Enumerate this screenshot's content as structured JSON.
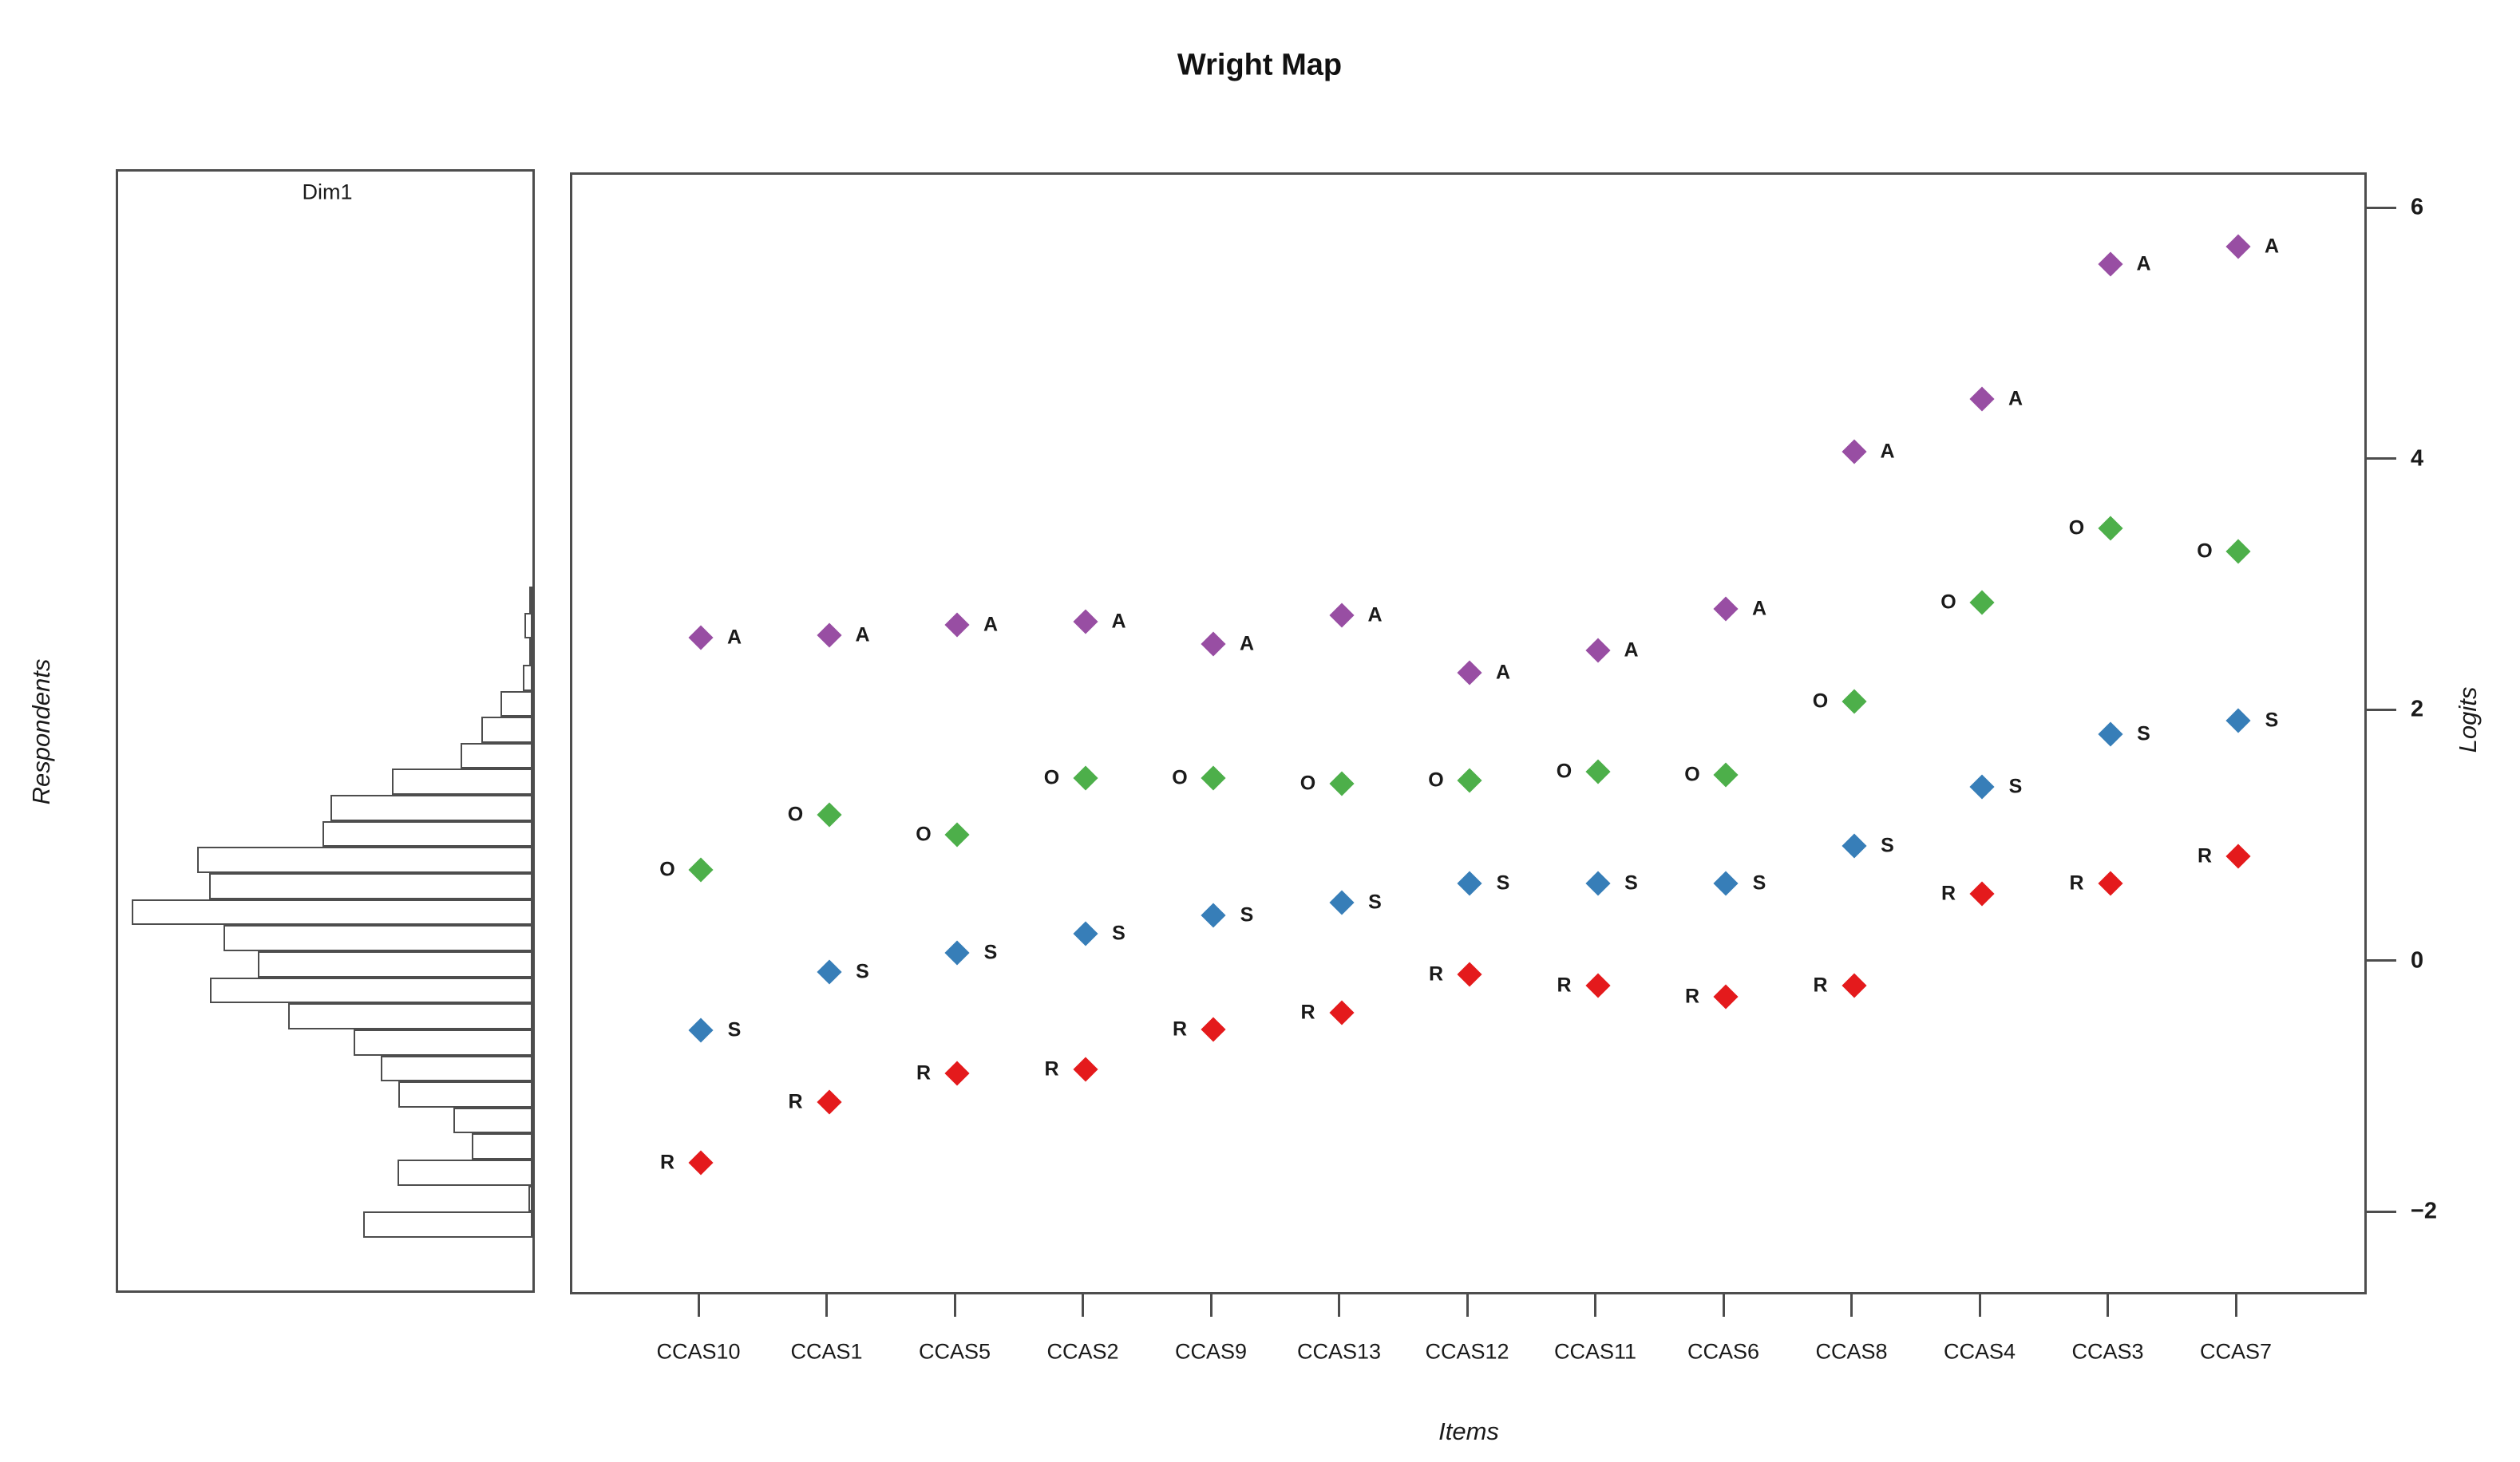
{
  "figure": {
    "title": "Wright Map",
    "background": "#ffffff"
  },
  "colors": {
    "red": "#E41A1C",
    "blue": "#377EB8",
    "green": "#4DAF4A",
    "purple": "#984EA3",
    "axis": "#4d4d4d",
    "text": "#1a1a1a"
  },
  "chart_data": {
    "type": "scatter",
    "subtype": "wright-map",
    "title": "Wright Map",
    "left_panel": {
      "header": "Dim1",
      "axis_label": "Respondents",
      "histogram": {
        "orientation": "horizontal-bars-right-aligned",
        "n_bins": 25,
        "logit_top": 2.98,
        "logit_bottom": -2.21,
        "relative_counts": [
          0.008,
          0.02,
          0.008,
          0.024,
          0.08,
          0.127,
          0.179,
          0.351,
          0.504,
          0.524,
          0.837,
          0.807,
          1.0,
          0.771,
          0.685,
          0.805,
          0.61,
          0.446,
          0.378,
          0.335,
          0.197,
          0.151,
          0.337,
          0.01,
          0.422
        ]
      }
    },
    "right_panel": {
      "x_axis_label": "Items",
      "y_axis_label": "Logits",
      "y_axis": {
        "side": "right",
        "ticks": [
          6,
          4,
          2,
          0,
          -2
        ],
        "tick_labels": [
          "6",
          "4",
          "2",
          "0",
          "−2"
        ],
        "ylim": [
          -2.66,
          6.28
        ],
        "grid": false
      },
      "categories": [
        {
          "code": "R",
          "color_key": "red",
          "color": "#E41A1C",
          "label_side": "left"
        },
        {
          "code": "S",
          "color_key": "blue",
          "color": "#377EB8",
          "label_side": "right"
        },
        {
          "code": "O",
          "color_key": "green",
          "color": "#4DAF4A",
          "label_side": "left"
        },
        {
          "code": "A",
          "color_key": "purple",
          "color": "#984EA3",
          "label_side": "right"
        }
      ],
      "items": [
        {
          "name": "CCAS10",
          "thresholds": {
            "R": -1.59,
            "S": -0.54,
            "O": 0.74,
            "A": 2.59
          }
        },
        {
          "name": "CCAS1",
          "thresholds": {
            "R": -1.11,
            "S": -0.07,
            "O": 1.18,
            "A": 2.61
          }
        },
        {
          "name": "CCAS5",
          "thresholds": {
            "R": -0.88,
            "S": 0.08,
            "O": 1.02,
            "A": 2.69
          }
        },
        {
          "name": "CCAS2",
          "thresholds": {
            "R": -0.85,
            "S": 0.23,
            "O": 1.47,
            "A": 2.72
          }
        },
        {
          "name": "CCAS9",
          "thresholds": {
            "R": -0.53,
            "S": 0.38,
            "O": 1.47,
            "A": 2.54
          }
        },
        {
          "name": "CCAS13",
          "thresholds": {
            "R": -0.4,
            "S": 0.48,
            "O": 1.43,
            "A": 2.77
          }
        },
        {
          "name": "CCAS12",
          "thresholds": {
            "R": -0.09,
            "S": 0.63,
            "O": 1.45,
            "A": 2.31
          }
        },
        {
          "name": "CCAS11",
          "thresholds": {
            "R": -0.18,
            "S": 0.63,
            "O": 1.52,
            "A": 2.49
          }
        },
        {
          "name": "CCAS6",
          "thresholds": {
            "R": -0.27,
            "S": 0.63,
            "O": 1.5,
            "A": 2.82
          }
        },
        {
          "name": "CCAS8",
          "thresholds": {
            "R": -0.18,
            "S": 0.93,
            "O": 2.08,
            "A": 4.07
          }
        },
        {
          "name": "CCAS4",
          "thresholds": {
            "R": 0.55,
            "S": 1.4,
            "O": 2.87,
            "A": 4.49
          }
        },
        {
          "name": "CCAS3",
          "thresholds": {
            "R": 0.63,
            "S": 1.82,
            "O": 3.46,
            "A": 5.57
          }
        },
        {
          "name": "CCAS7",
          "thresholds": {
            "R": 0.85,
            "S": 1.93,
            "O": 3.28,
            "A": 5.71
          }
        }
      ]
    }
  }
}
